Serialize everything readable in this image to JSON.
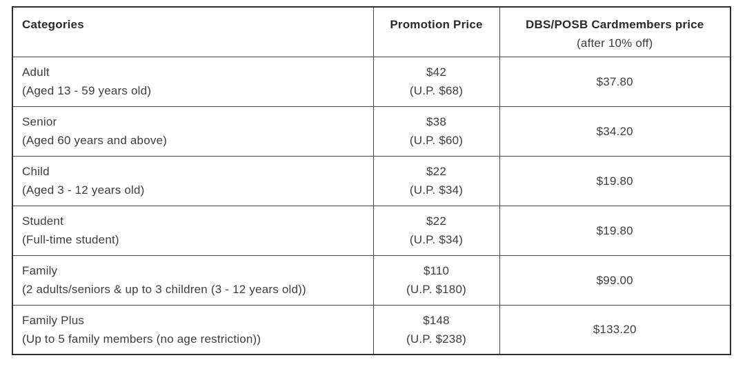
{
  "colors": {
    "background": "#ffffff",
    "text": "#3d3d3d",
    "header_text": "#2b2b2b",
    "inner_border": "#4a4a4a",
    "outer_border": "#2f2f2f"
  },
  "table": {
    "columns": [
      {
        "label": "Categories",
        "sub": ""
      },
      {
        "label": "Promotion Price",
        "sub": ""
      },
      {
        "label": "DBS/POSB Cardmembers price",
        "sub": "(after 10% off)"
      }
    ],
    "rows": [
      {
        "category": "Adult",
        "category_detail": "(Aged 13 - 59 years old)",
        "promo_price": "$42",
        "usual_price": "(U.P. $68)",
        "cardmember_price": "$37.80"
      },
      {
        "category": "Senior",
        "category_detail": "(Aged 60 years and above)",
        "promo_price": "$38",
        "usual_price": "(U.P. $60)",
        "cardmember_price": "$34.20"
      },
      {
        "category": "Child",
        "category_detail": "(Aged 3 - 12 years old)",
        "promo_price": "$22",
        "usual_price": "(U.P. $34)",
        "cardmember_price": "$19.80"
      },
      {
        "category": "Student",
        "category_detail": "(Full-time student)",
        "promo_price": "$22",
        "usual_price": "(U.P. $34)",
        "cardmember_price": "$19.80"
      },
      {
        "category": "Family",
        "category_detail": "(2 adults/seniors & up to 3 children (3 - 12 years old))",
        "promo_price": "$110",
        "usual_price": "(U.P. $180)",
        "cardmember_price": "$99.00"
      },
      {
        "category": "Family Plus",
        "category_detail": "(Up to 5 family members (no age restriction))",
        "promo_price": "$148",
        "usual_price": "(U.P. $238)",
        "cardmember_price": "$133.20"
      }
    ]
  }
}
